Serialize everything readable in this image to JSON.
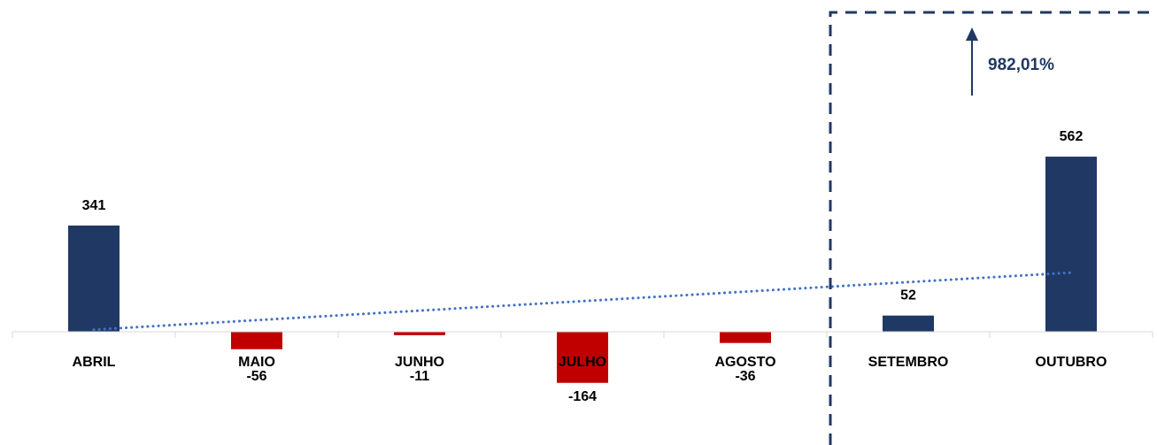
{
  "chart_data": {
    "type": "bar",
    "title": "",
    "xlabel": "",
    "ylabel": "",
    "categories": [
      "ABRIL",
      "MAIO",
      "JUNHO",
      "JULHO",
      "AGOSTO",
      "SETEMBRO",
      "OUTUBRO"
    ],
    "values": [
      341,
      -56,
      -11,
      -164,
      -36,
      52,
      562
    ],
    "value_labels": [
      "341",
      "-56",
      "-11",
      "-164",
      "-36",
      "52",
      "562"
    ],
    "ylim": [
      -170,
      1000
    ],
    "grid": false,
    "legend": "none",
    "trendline": {
      "type": "linear",
      "style": "dotted"
    },
    "highlight": {
      "categories": [
        "SETEMBRO",
        "OUTUBRO"
      ],
      "style": "dashed-box"
    },
    "annotation": {
      "text": "982,01%",
      "direction": "up"
    }
  },
  "colors": {
    "positive": "#203864",
    "negative": "#C00000",
    "trendline": "#4472C4",
    "axis": "#D9D9D9",
    "highlight": "#203864"
  }
}
